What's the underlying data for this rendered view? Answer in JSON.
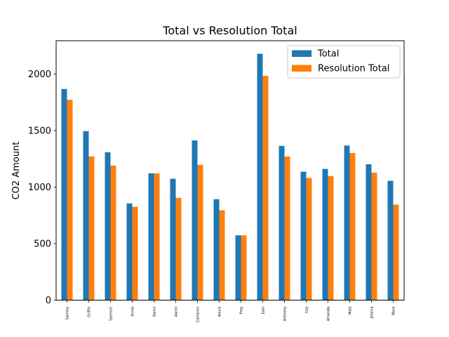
{
  "chart_data": {
    "type": "bar",
    "title": "Total vs Resolution Total",
    "xlabel": "",
    "ylabel": "CO2 Amount",
    "ylim": [
      0,
      2295
    ],
    "yticks": [
      0,
      500,
      1000,
      1500,
      2000
    ],
    "legend_position": "top-right",
    "grid": false,
    "categories": [
      "Sammy",
      "Griffin",
      "Spencer",
      "Annie",
      "Aaron",
      "Aaron",
      "Cameron",
      "Alexis",
      "Prey",
      "Juan",
      "Anthony",
      "Izzy",
      "Amanda",
      "Matt",
      "Jessica",
      "Mark"
    ],
    "series": [
      {
        "name": "Total",
        "color": "#1f77b4",
        "values": [
          1868,
          1495,
          1308,
          856,
          1122,
          1074,
          1413,
          893,
          573,
          2180,
          1365,
          1136,
          1161,
          1368,
          1202,
          1056
        ]
      },
      {
        "name": "Resolution Total",
        "color": "#ff7f0e",
        "values": [
          1773,
          1271,
          1190,
          826,
          1122,
          905,
          1197,
          795,
          573,
          1984,
          1271,
          1081,
          1098,
          1302,
          1128,
          845
        ]
      }
    ]
  }
}
